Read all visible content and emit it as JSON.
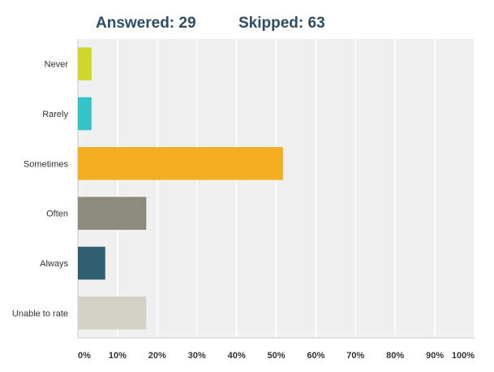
{
  "header": {
    "answered": "Answered: 29",
    "skipped": "Skipped: 63"
  },
  "chart_data": {
    "type": "bar",
    "orientation": "horizontal",
    "categories": [
      "Never",
      "Rarely",
      "Sometimes",
      "Often",
      "Always",
      "Unable to rate"
    ],
    "values": [
      3.45,
      3.45,
      51.72,
      17.24,
      6.9,
      17.24
    ],
    "colors": [
      "#cfd52a",
      "#34c3c8",
      "#f4ae22",
      "#8c8b7b",
      "#2e6070",
      "#d3d2c6"
    ],
    "xlim": [
      0,
      100
    ],
    "xticks": [
      "0%",
      "10%",
      "20%",
      "30%",
      "40%",
      "50%",
      "60%",
      "70%",
      "80%",
      "90%",
      "100%"
    ],
    "grid": true,
    "plot_background": "#f0f0f0",
    "gridline_color": "#ffffff"
  }
}
